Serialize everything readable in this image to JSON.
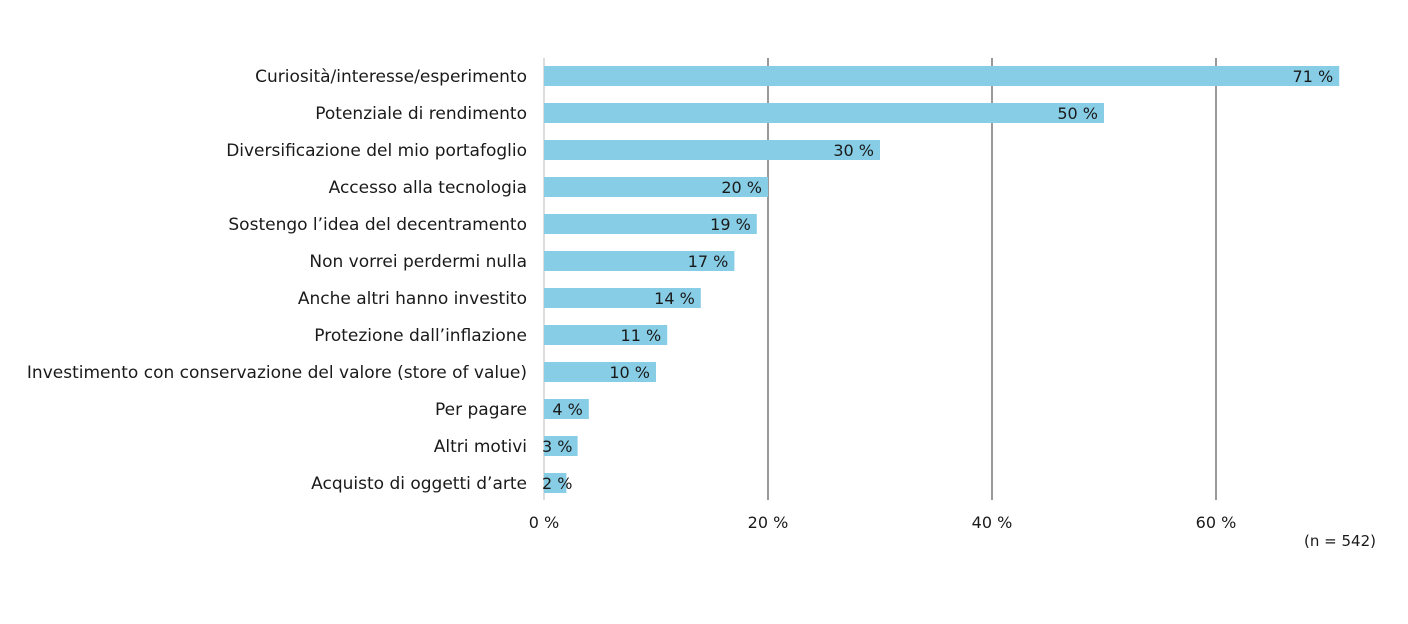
{
  "chart_data": {
    "type": "bar",
    "orientation": "horizontal",
    "categories": [
      "Curiosità/interesse/esperimento",
      "Potenziale di rendimento",
      "Diversificazione del mio portafoglio",
      "Accesso alla tecnologia",
      "Sostengo l’idea del decentramento",
      "Non vorrei perdermi nulla",
      "Anche altri hanno investito",
      "Protezione dall’inflazione",
      "Investimento con conservazione del valore (store of value)",
      "Per pagare",
      "Altri motivi",
      "Acquisto di oggetti d’arte"
    ],
    "values": [
      71,
      50,
      30,
      20,
      19,
      17,
      14,
      11,
      10,
      4,
      3,
      2
    ],
    "value_labels": [
      "71 %",
      "50 %",
      "30 %",
      "20 %",
      "19 %",
      "17 %",
      "14 %",
      "11 %",
      "10 %",
      "4 %",
      "3 %",
      "2 %"
    ],
    "xlim": [
      0,
      75
    ],
    "x_ticks": [
      0,
      20,
      40,
      60
    ],
    "x_tick_labels": [
      "0 %",
      "20 %",
      "40 %",
      "60 %"
    ],
    "grid": "vertical",
    "legend": "none",
    "note": "(n = 542)",
    "colors": {
      "bar": "#87cde5",
      "grid": "#333333",
      "text": "#1a1a1a"
    }
  }
}
